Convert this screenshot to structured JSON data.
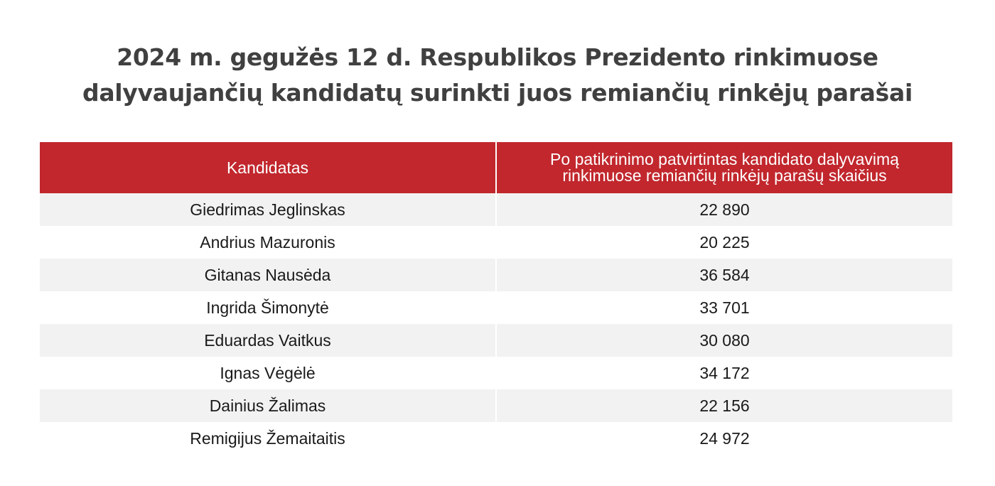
{
  "chart_data": {
    "type": "table",
    "title_lines": [
      "2024 m. gegužės 12 d. Respublikos Prezidento rinkimuose",
      "dalyvaujančių kandidatų surinkti juos remiančių rinkėjų parašai"
    ],
    "columns": [
      "Kandidatas",
      "Po patikrinimo patvirtintas kandidato dalyvavimą rinkimuose remiančių rinkėjų parašų skaičius"
    ],
    "column2_lines": [
      "Po patikrinimo patvirtintas kandidato dalyvavimą",
      "rinkimuose remiančių rinkėjų parašų skaičius"
    ],
    "rows": [
      {
        "candidate": "Giedrimas Jeglinskas",
        "signatures": "22 890"
      },
      {
        "candidate": "Andrius Mazuronis",
        "signatures": "20 225"
      },
      {
        "candidate": "Gitanas Nausėda",
        "signatures": "36 584"
      },
      {
        "candidate": "Ingrida Šimonytė",
        "signatures": "33 701"
      },
      {
        "candidate": "Eduardas Vaitkus",
        "signatures": "30 080"
      },
      {
        "candidate": "Ignas Vėgėlė",
        "signatures": "34 172"
      },
      {
        "candidate": "Dainius Žalimas",
        "signatures": "22 156"
      },
      {
        "candidate": "Remigijus Žemaitaitis",
        "signatures": "24 972"
      }
    ],
    "header_color": "#c1272d",
    "alt_row_color": "#f2f2f2"
  }
}
